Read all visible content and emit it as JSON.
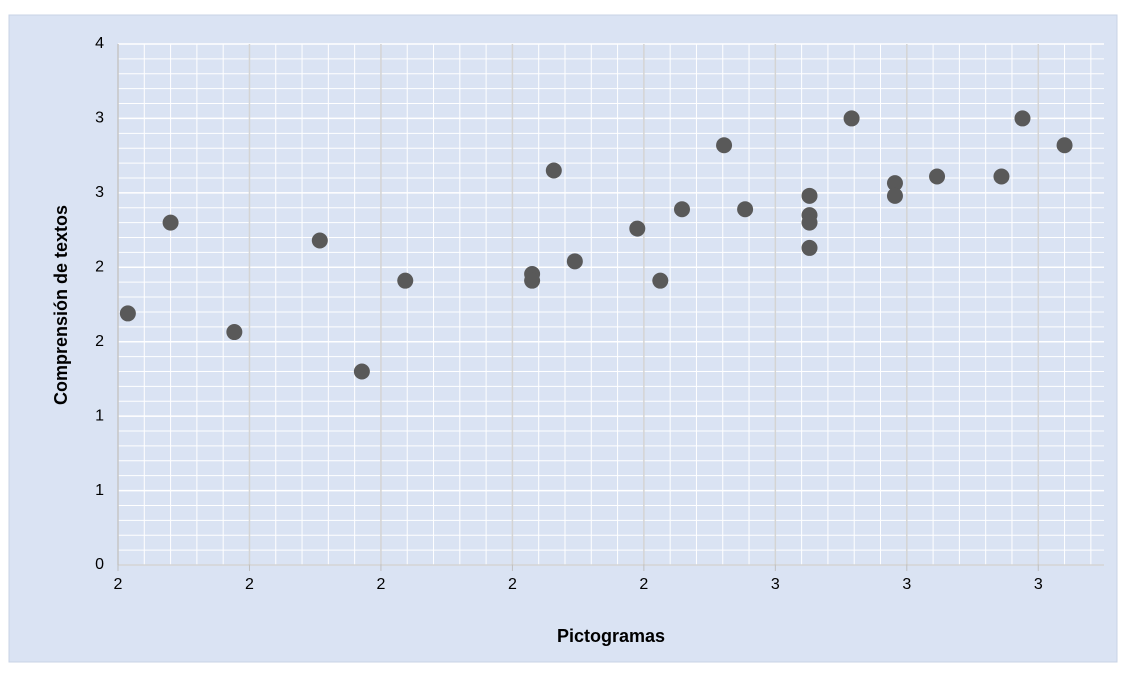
{
  "chart_data": {
    "type": "scatter",
    "x_label": "Pictogramas",
    "y_label": "Comprensión de textos",
    "color": "#595959",
    "grid": true,
    "xlim": [
      1.6,
      3.1
    ],
    "xticks": [
      {
        "value": 1.6,
        "label": "2"
      },
      {
        "value": 1.8,
        "label": "2"
      },
      {
        "value": 2.0,
        "label": "2"
      },
      {
        "value": 2.2,
        "label": "2"
      },
      {
        "value": 2.4,
        "label": "2"
      },
      {
        "value": 2.6,
        "label": "3"
      },
      {
        "value": 2.8,
        "label": "3"
      },
      {
        "value": 3.0,
        "label": "3"
      }
    ],
    "ylim": [
      0,
      3.5
    ],
    "yticks": [
      0,
      {
        "value": 0.5,
        "label": "1"
      },
      1,
      {
        "value": 1.5,
        "label": "2"
      },
      2,
      {
        "value": 2.5,
        "label": "3"
      },
      3,
      {
        "value": 3.5,
        "label": "4"
      }
    ],
    "x": [
      1.615,
      1.68,
      1.777,
      1.907,
      1.971,
      2.037,
      2.23,
      2.23,
      2.263,
      2.295,
      2.39,
      2.425,
      2.458,
      2.522,
      2.554,
      2.652,
      2.652,
      2.652,
      2.652,
      2.716,
      2.782,
      2.782,
      2.846,
      2.944,
      2.976,
      3.04
    ],
    "values": [
      1.69,
      2.3,
      1.565,
      2.18,
      1.3,
      1.91,
      1.955,
      1.91,
      2.65,
      2.04,
      2.26,
      1.91,
      2.39,
      2.82,
      2.39,
      2.48,
      2.35,
      2.3,
      2.13,
      3.0,
      2.565,
      2.48,
      2.61,
      2.61,
      3.0,
      2.82
    ]
  }
}
